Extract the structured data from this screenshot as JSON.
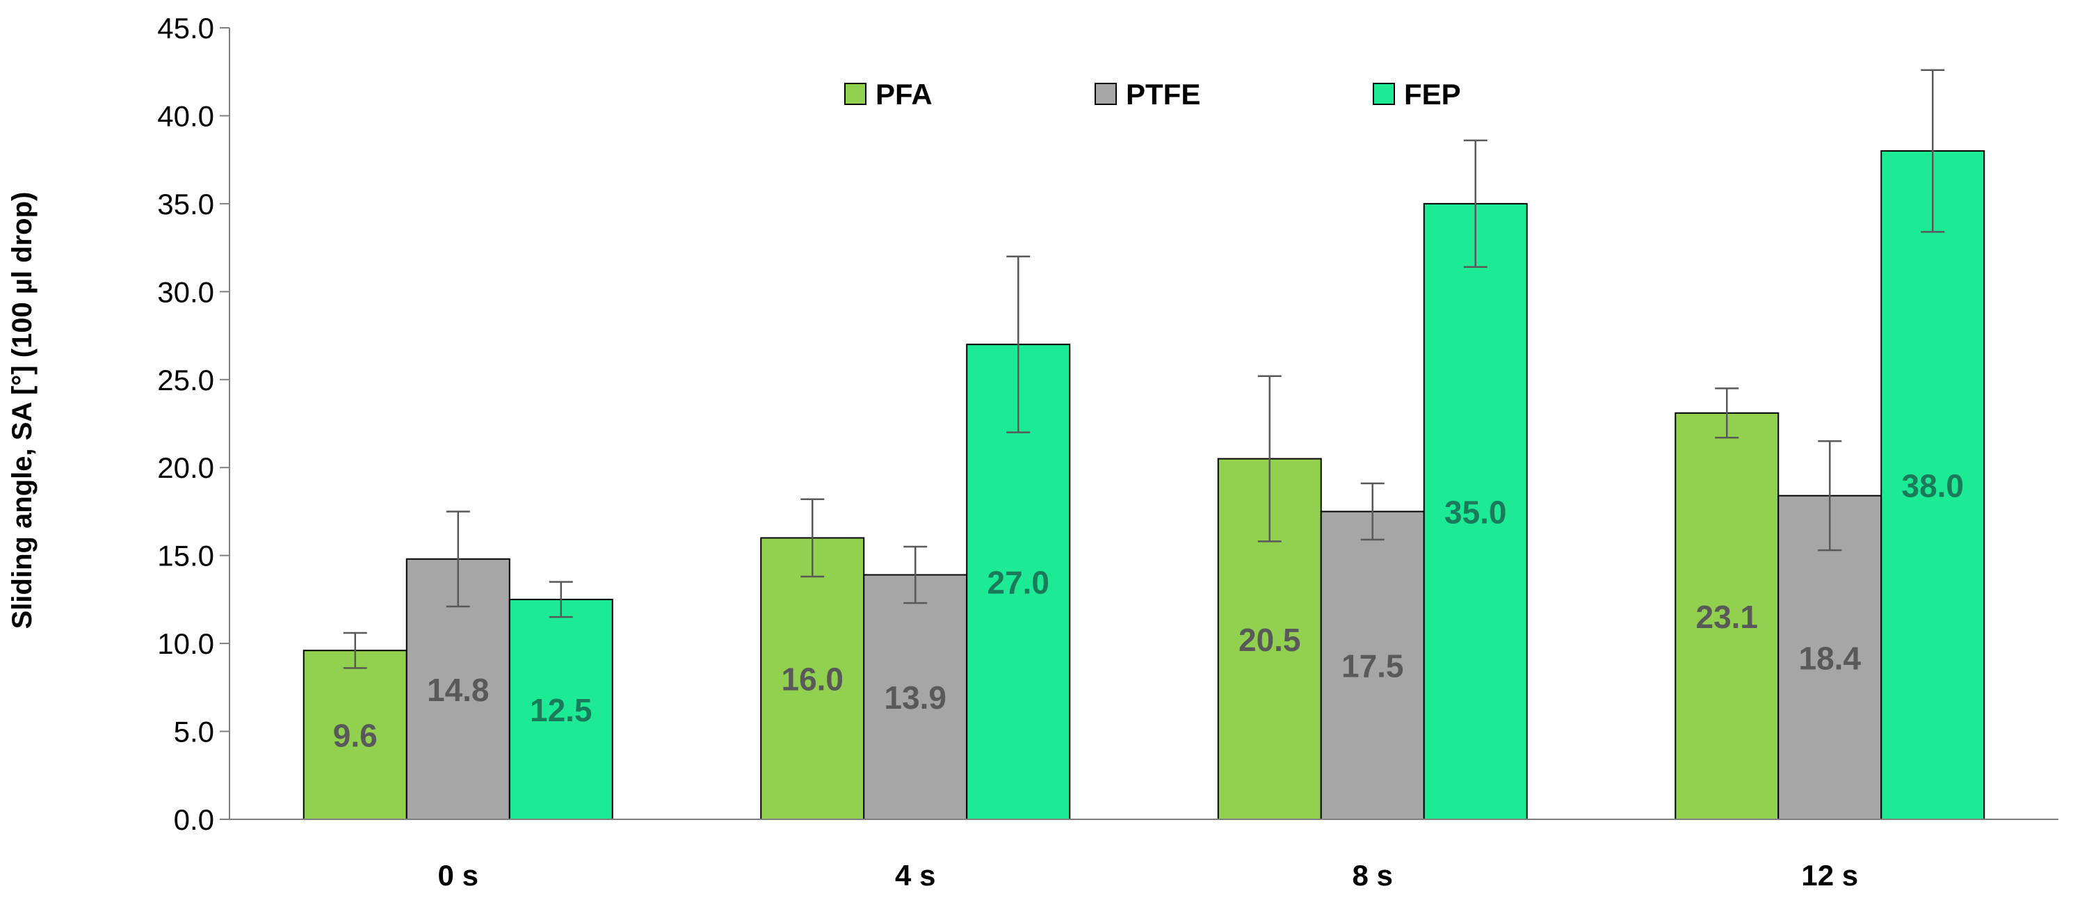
{
  "chart_data": {
    "type": "bar",
    "title": "",
    "xlabel": "",
    "ylabel": "Sliding angle, SA [°] (100 µl drop)",
    "ylim": [
      0,
      45
    ],
    "ytick_step": 5,
    "ytick_labels": [
      "0.0",
      "5.0",
      "10.0",
      "15.0",
      "20.0",
      "25.0",
      "30.0",
      "35.0",
      "40.0",
      "45.0"
    ],
    "categories": [
      "0 s",
      "4 s",
      "8 s",
      "12 s"
    ],
    "legend_position": "top-center",
    "series": [
      {
        "name": "PFA",
        "color": "#92d050",
        "label_color": "#595959",
        "values": [
          9.6,
          16.0,
          20.5,
          23.1
        ],
        "value_labels": [
          "9.6",
          "16.0",
          "20.5",
          "23.1"
        ],
        "errors": [
          1.0,
          2.2,
          4.7,
          1.4
        ]
      },
      {
        "name": "PTFE",
        "color": "#a6a6a6",
        "label_color": "#595959",
        "values": [
          14.8,
          13.9,
          17.5,
          18.4
        ],
        "value_labels": [
          "14.8",
          "13.9",
          "17.5",
          "18.4"
        ],
        "errors": [
          2.7,
          1.6,
          1.6,
          3.1
        ]
      },
      {
        "name": "FEP",
        "color": "#1dea95",
        "label_color": "#1a7a5a",
        "values": [
          12.5,
          27.0,
          35.0,
          38.0
        ],
        "value_labels": [
          "12.5",
          "27.0",
          "35.0",
          "38.0"
        ],
        "errors": [
          1.0,
          5.0,
          3.6,
          4.6
        ]
      }
    ]
  }
}
